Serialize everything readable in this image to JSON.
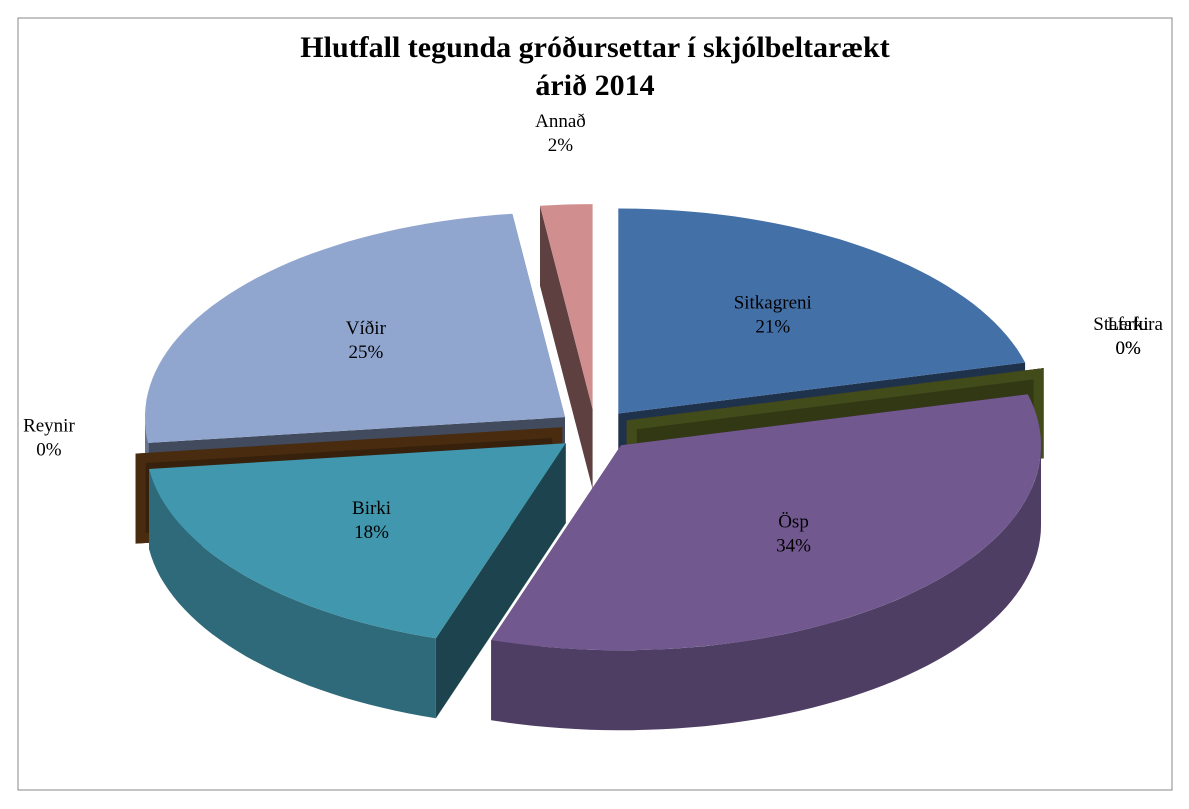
{
  "chart_data": {
    "type": "pie3d",
    "title": [
      "Hlutfall tegunda gróðursettar í skjólbeltarækt",
      "árið 2014"
    ],
    "categories": [
      "Sitkagreni",
      "Stafafura",
      "Lerki",
      "Ösp",
      "Birki",
      "Reynir",
      "Víðir",
      "Annað"
    ],
    "values": [
      21,
      0,
      0,
      34,
      18,
      0,
      25,
      2
    ],
    "value_labels": [
      "21%",
      "0%",
      "0%",
      "34%",
      "18%",
      "0%",
      "25%",
      "2%"
    ],
    "colors": [
      "#4470a8",
      "#a8423f",
      "#6e7d2c",
      "#71588f",
      "#4197ad",
      "#7a4a1a",
      "#91a6cf",
      "#d08e8e"
    ]
  }
}
